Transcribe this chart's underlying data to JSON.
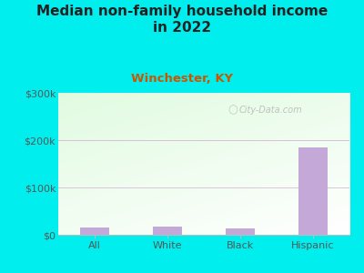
{
  "categories": [
    "All",
    "White",
    "Black",
    "Hispanic"
  ],
  "values": [
    15000,
    18000,
    14000,
    185000
  ],
  "bar_color": "#C4A8D8",
  "title": "Median non-family household income\nin 2022",
  "subtitle": "Winchester, KY",
  "subtitle_color": "#CC5500",
  "title_color": "#222222",
  "bg_color": "#00EEEE",
  "plot_bg_color_topleft": "#d8f0d8",
  "plot_bg_color_topright": "#f0f8f0",
  "plot_bg_color_bottom": "#e8f5e8",
  "ylim": [
    0,
    300000
  ],
  "yticks": [
    0,
    100000,
    200000,
    300000
  ],
  "ytick_labels": [
    "$0",
    "$100k",
    "$200k",
    "$300k"
  ],
  "grid_color_200k": "#e8c8e8",
  "grid_color_100k": "#e8d8e8",
  "watermark": "City-Data.com",
  "title_fontsize": 11,
  "subtitle_fontsize": 9.5,
  "tick_fontsize": 8,
  "ylabel_color": "#555555"
}
